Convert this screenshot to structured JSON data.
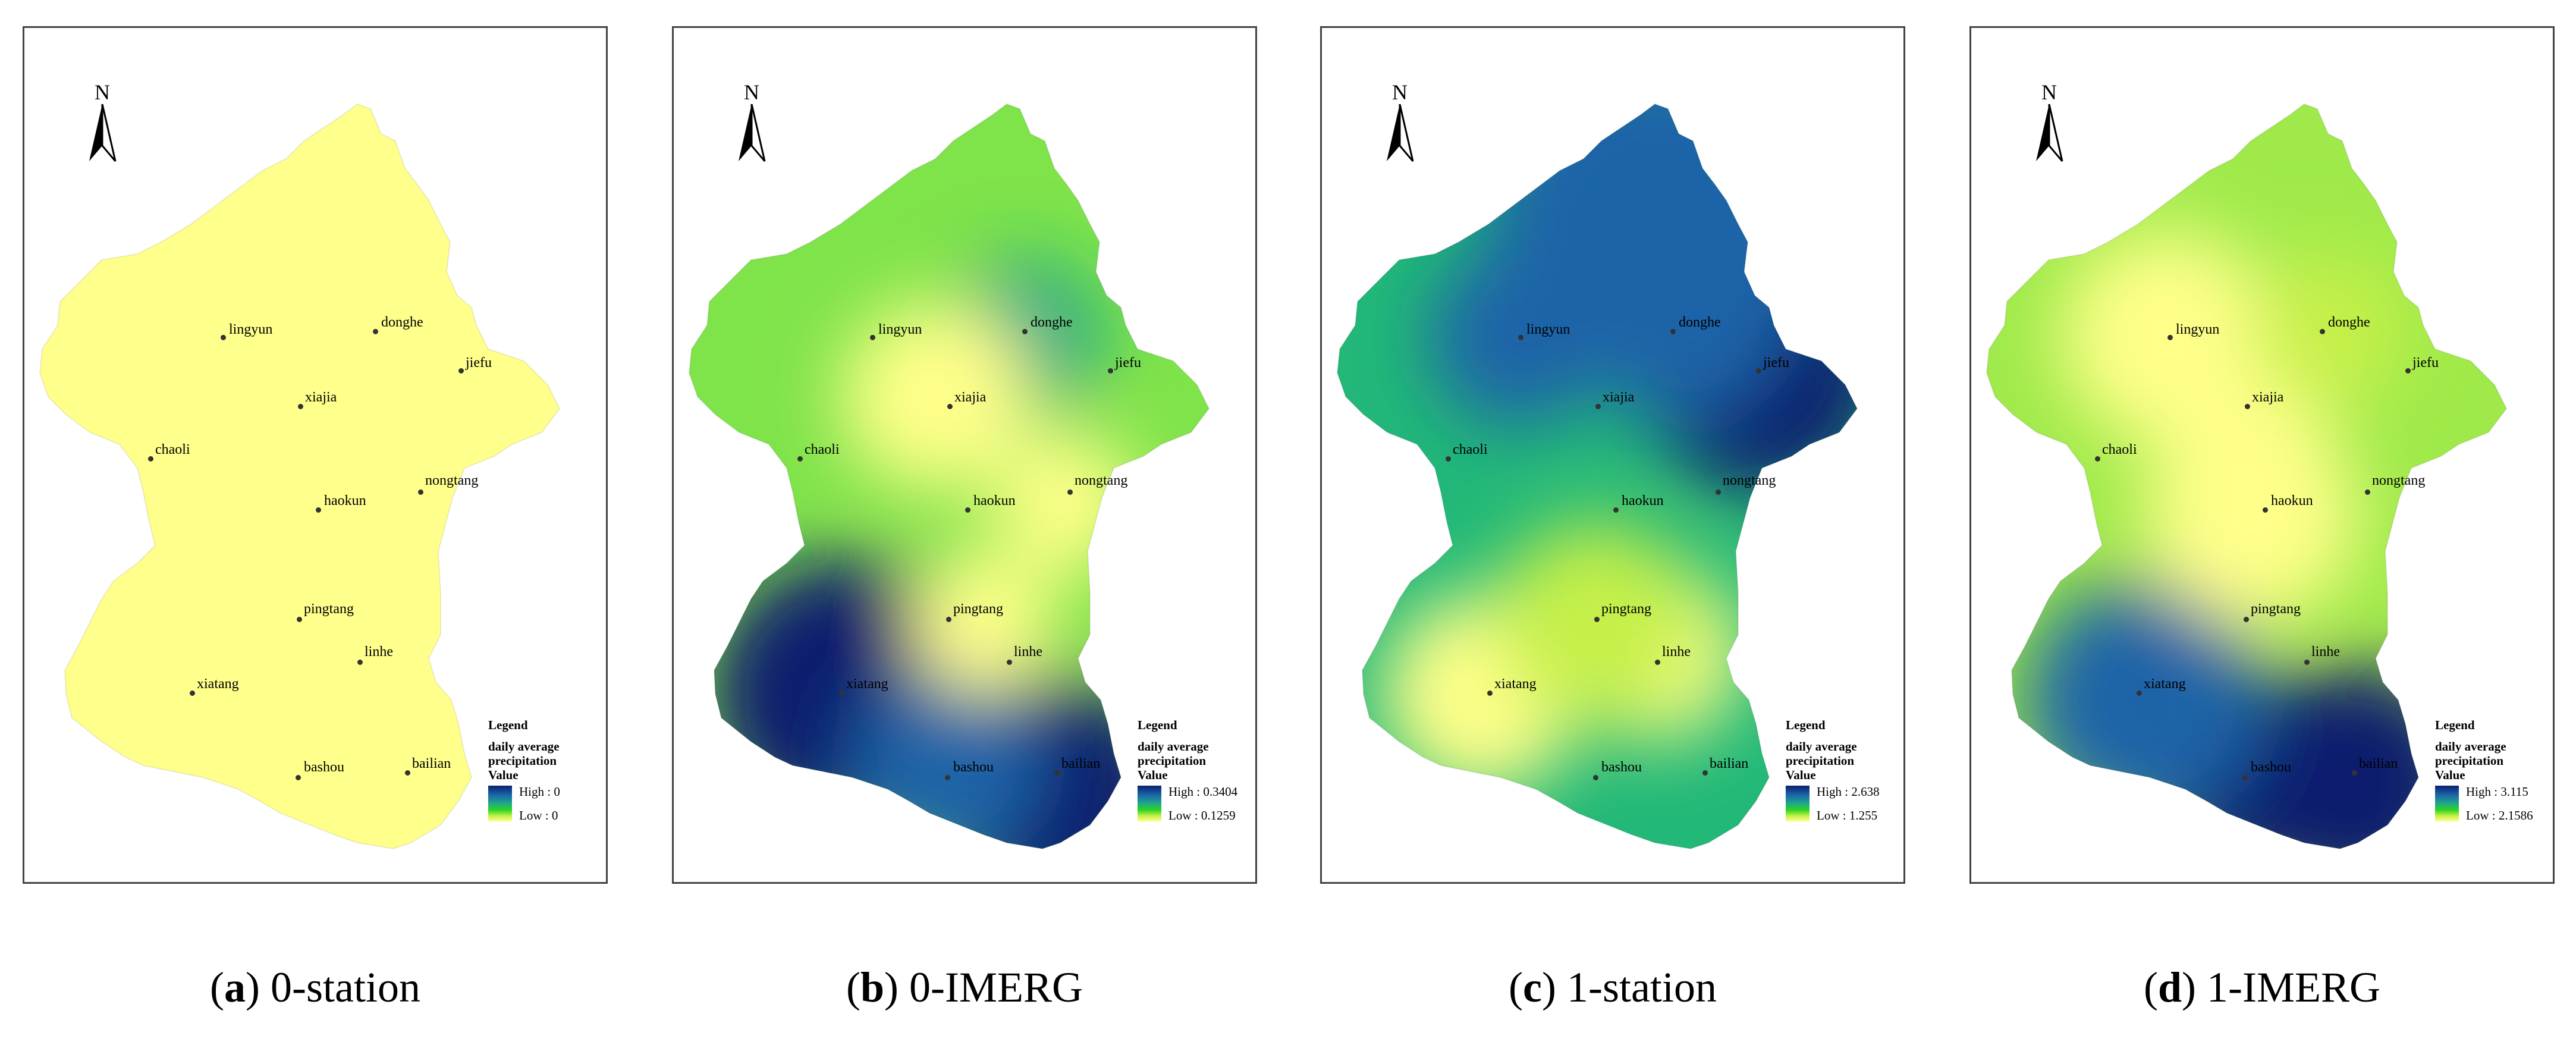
{
  "panels": [
    {
      "caption_letter": "a",
      "caption_text": ") 0-station",
      "north_label": "N",
      "fill_style": "uniform",
      "legend": {
        "title": "Legend",
        "subtitle_line1": "daily average",
        "subtitle_line2": "precipitation",
        "subtitle_line3": "Value",
        "high_label": "High : 0",
        "low_label": "Low : 0",
        "high_value": 0,
        "low_value": 0
      }
    },
    {
      "caption_letter": "b",
      "caption_text": ") 0-IMERG",
      "north_label": "N",
      "fill_style": "southwest-southeast-high",
      "legend": {
        "title": "Legend",
        "subtitle_line1": "daily average",
        "subtitle_line2": "precipitation",
        "subtitle_line3": "Value",
        "high_label": "High : 0.3404",
        "low_label": "Low : 0.1259",
        "high_value": 0.3404,
        "low_value": 0.1259
      }
    },
    {
      "caption_letter": "c",
      "caption_text": ") 1-station",
      "north_label": "N",
      "fill_style": "north-high",
      "legend": {
        "title": "Legend",
        "subtitle_line1": "daily average",
        "subtitle_line2": "precipitation",
        "subtitle_line3": "Value",
        "high_label": "High : 2.638",
        "low_label": "Low : 1.255",
        "high_value": 2.638,
        "low_value": 1.255
      }
    },
    {
      "caption_letter": "d",
      "caption_text": ") 1-IMERG",
      "north_label": "N",
      "fill_style": "southeast-high",
      "legend": {
        "title": "Legend",
        "subtitle_line1": "daily average",
        "subtitle_line2": "precipitation",
        "subtitle_line3": "Value",
        "high_label": "High : 3.115",
        "low_label": "Low : 2.1586",
        "high_value": 3.115,
        "low_value": 2.1586
      }
    }
  ],
  "stations": [
    {
      "name": "lingyun"
    },
    {
      "name": "donghe"
    },
    {
      "name": "jiefu"
    },
    {
      "name": "xiajia"
    },
    {
      "name": "chaoli"
    },
    {
      "name": "haokun"
    },
    {
      "name": "nongtang"
    },
    {
      "name": "pingtang"
    },
    {
      "name": "linhe"
    },
    {
      "name": "xiatang"
    },
    {
      "name": "bashou"
    },
    {
      "name": "bailian"
    }
  ],
  "colors": {
    "high": "#0a1f6e",
    "mid_blue": "#1b63a8",
    "teal": "#1fa88a",
    "green": "#2bd51f",
    "yellow_green": "#c6f04a",
    "low": "#ffff8a",
    "uniform_fill": "#ffff8c"
  }
}
